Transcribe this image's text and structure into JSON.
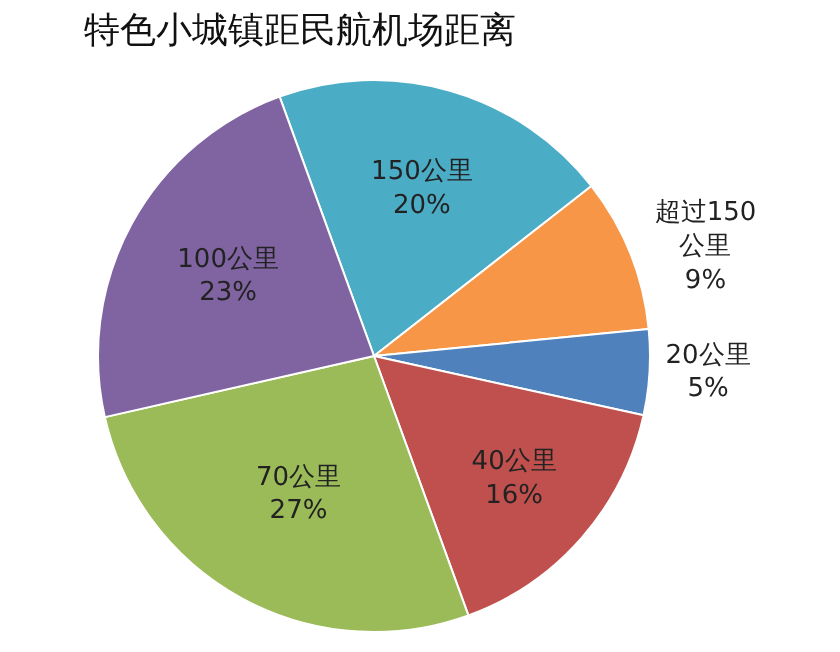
{
  "chart_data": {
    "type": "pie",
    "title": "特色小城镇距民航机场距离",
    "categories": [
      "150公里",
      "超过150公里",
      "20公里",
      "40公里",
      "70公里",
      "100公里"
    ],
    "values": [
      20,
      9,
      5,
      16,
      27,
      23
    ],
    "value_labels": [
      "20%",
      "9%",
      "5%",
      "16%",
      "27%",
      "23%"
    ],
    "colors": [
      "#4bacc6",
      "#f79646",
      "#4f81bd",
      "#c0504d",
      "#9bbb59",
      "#8064a2"
    ],
    "legend": false
  }
}
